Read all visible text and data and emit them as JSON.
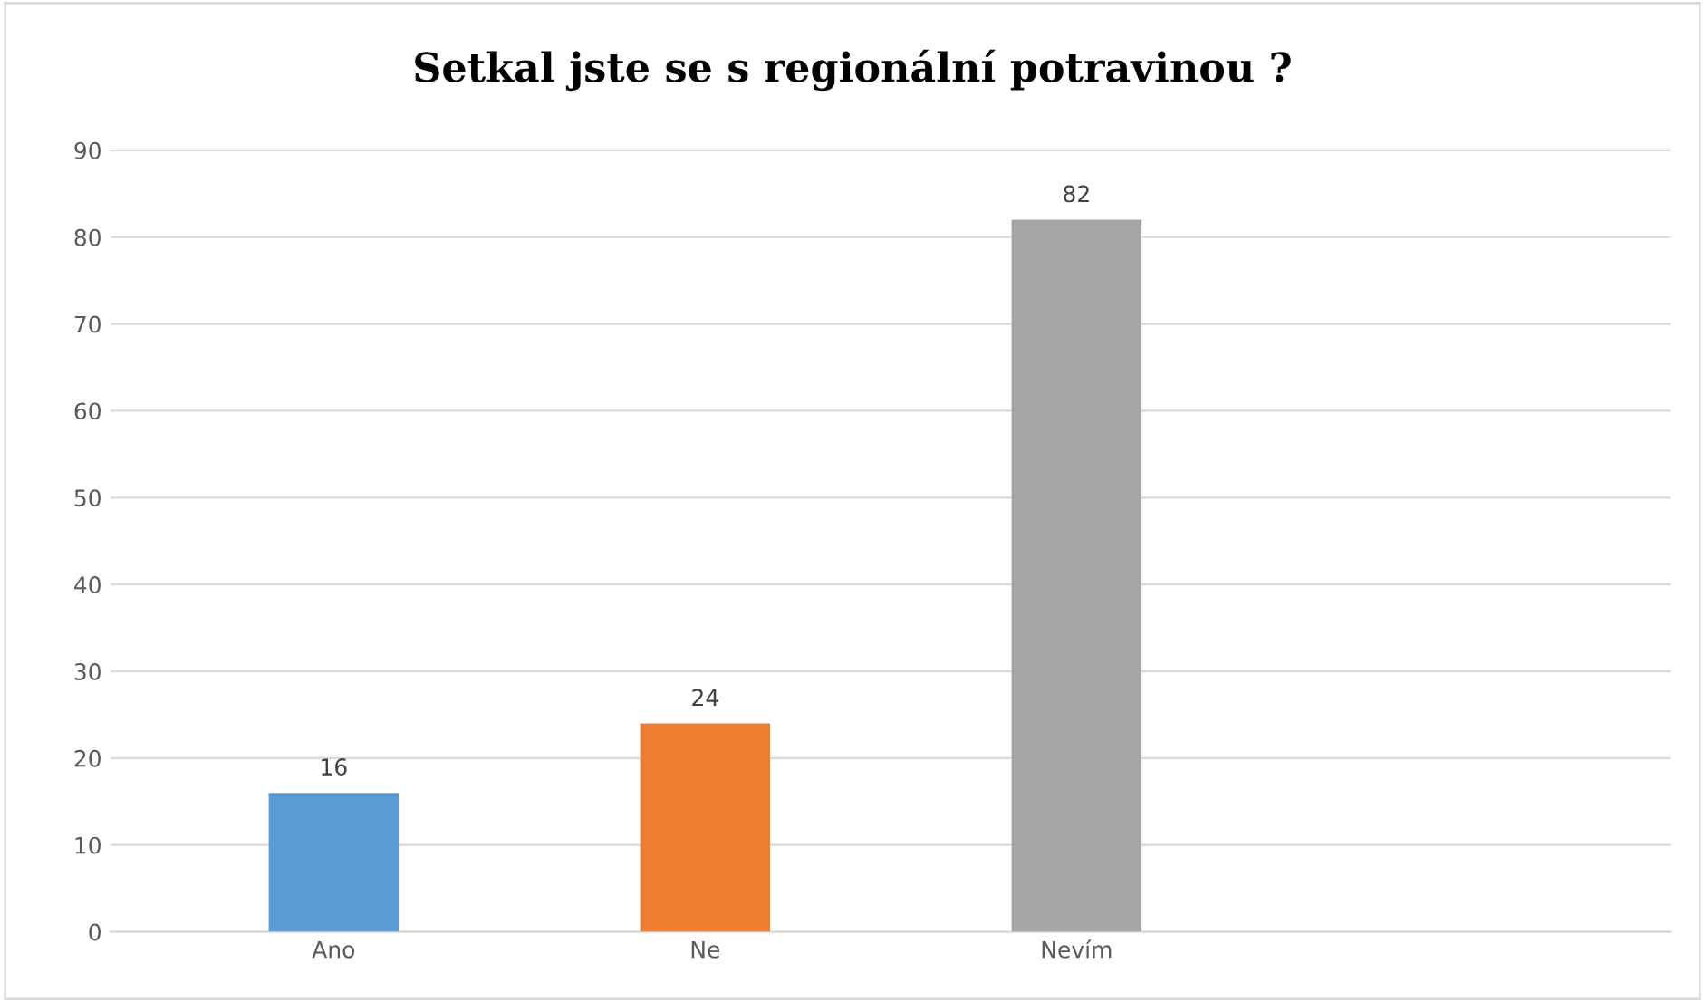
{
  "chart_data": {
    "type": "bar",
    "title": "Setkal jste se s regionální potravinou ?",
    "categories": [
      "Ano",
      "Ne",
      "Nevím",
      null
    ],
    "values": [
      16,
      24,
      82,
      null
    ],
    "colors": [
      "#5b9bd5",
      "#ed7d31",
      "#a5a5a5",
      "#a5a5a5"
    ],
    "ylim": [
      0,
      90
    ],
    "yticks": [
      0,
      10,
      20,
      30,
      40,
      50,
      60,
      70,
      80,
      90
    ],
    "grid": "y",
    "data_labels": true,
    "legend": false
  }
}
